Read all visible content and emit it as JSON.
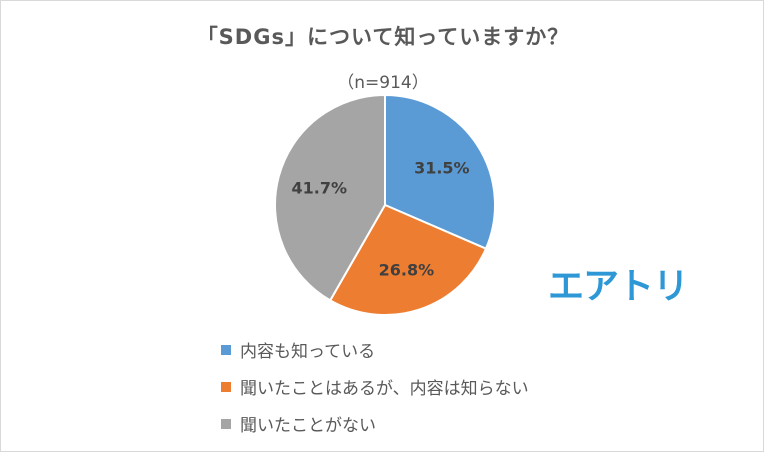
{
  "colors": {
    "blue": "#5b9bd5",
    "orange": "#ed7d31",
    "gray": "#a5a5a5",
    "logo": "#2e98d6"
  },
  "logo_text": "エアトリ",
  "chart_data": {
    "type": "pie",
    "title": "「SDGs」について知っていますか？",
    "subtitle": "（n=914）",
    "slices": [
      {
        "label": "内容も知っている",
        "value": 31.5,
        "display": "31.5%",
        "color": "#5b9bd5"
      },
      {
        "label": "聞いたことはあるが、内容は知らない",
        "value": 26.8,
        "display": "26.8%",
        "color": "#ed7d31"
      },
      {
        "label": "聞いたことがない",
        "value": 41.7,
        "display": "41.7%",
        "color": "#a5a5a5"
      }
    ],
    "legend_position": "bottom"
  }
}
